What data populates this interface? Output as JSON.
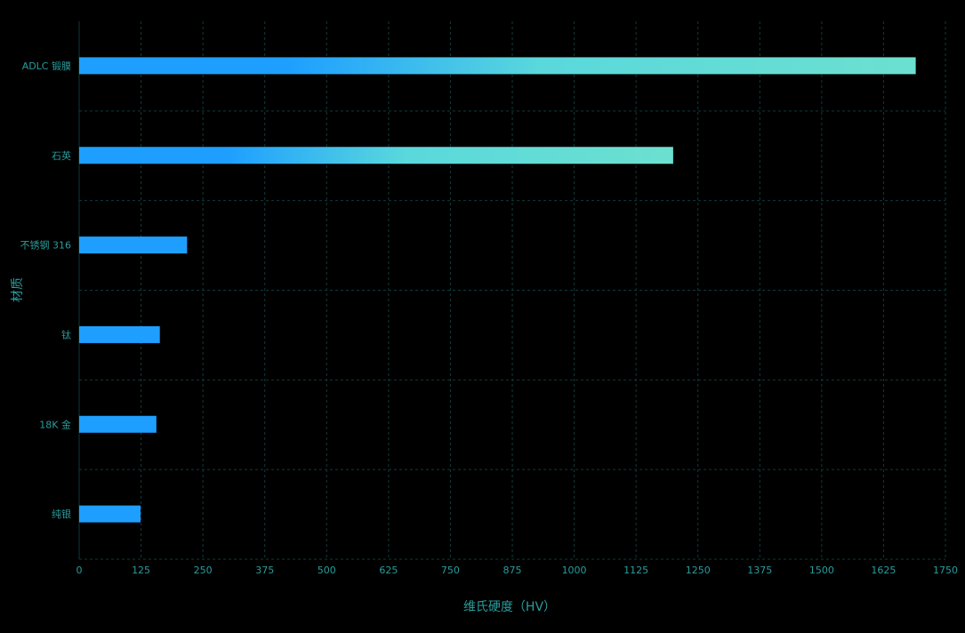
{
  "chart_data": {
    "type": "bar",
    "orientation": "horizontal",
    "categories": [
      "ADLC 锻膜",
      "石英",
      "不锈钢 316",
      "钛",
      "18K 金",
      "纯银"
    ],
    "values": [
      1690,
      1200,
      218,
      163,
      156,
      124
    ],
    "xlabel": "维氏硬度（HV）",
    "ylabel": "材质",
    "xlim": [
      0,
      1750
    ],
    "xticks": [
      0,
      125,
      250,
      375,
      500,
      625,
      750,
      875,
      1000,
      1125,
      1250,
      1375,
      1500,
      1625,
      1750
    ],
    "grid": true,
    "colors": {
      "bar": "#1e9fff",
      "bar_gradient_end": "#6ce0d0",
      "text": "#2a9d9d",
      "grid": "#0f3a3a"
    }
  }
}
